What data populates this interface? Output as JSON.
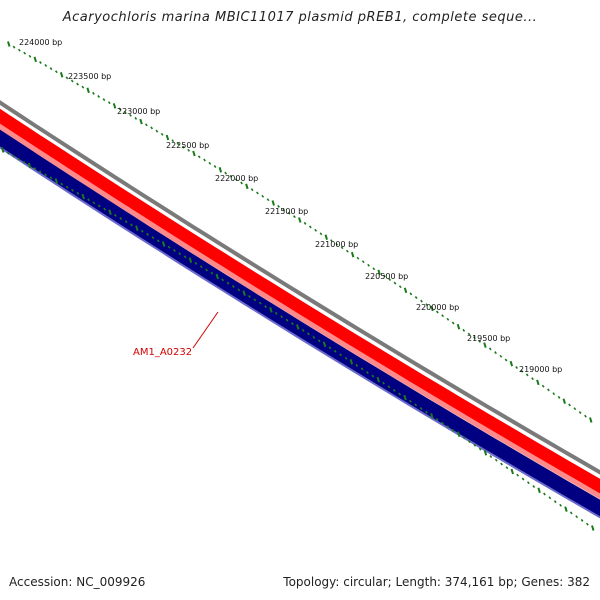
{
  "title": "Acaryochloris marina MBIC11017 plasmid pREB1, complete seque...",
  "accession": "Accession: NC_009926",
  "summary": "Topology: circular; Length: 374,161 bp; Genes: 382",
  "tick_labels": [
    "224000 bp",
    "223500 bp",
    "223000 bp",
    "222500 bp",
    "222000 bp",
    "221500 bp",
    "221000 bp",
    "220500 bp",
    "220000 bp",
    "219500 bp",
    "219000 bp"
  ],
  "gene_label": "AM1_A0232",
  "colors": {
    "outer_ring": "#7a7a7a",
    "forward_strand": "#ff0000",
    "forward_strand_light": "#ff8a8a",
    "reverse_strand": "#000080",
    "reverse_strand_light": "#6a6acc",
    "ticks": "#1a7a1a",
    "gene_label": "#d40000"
  }
}
